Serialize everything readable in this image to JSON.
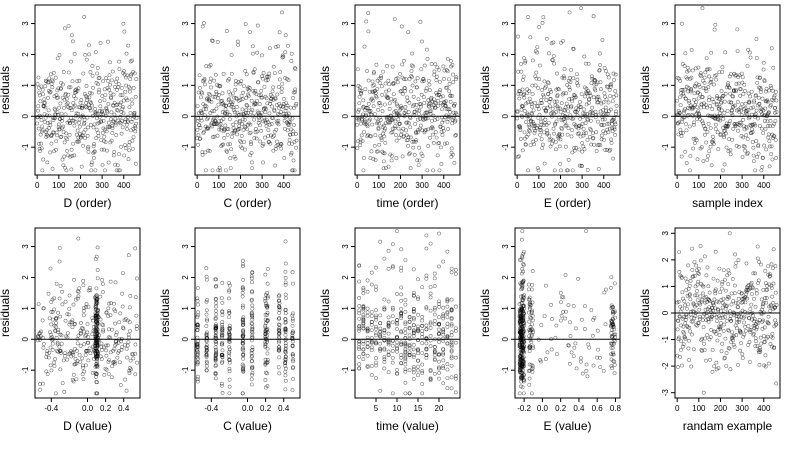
{
  "chart_data": [
    {
      "type": "scatter",
      "xlabel": "D (order)",
      "ylabel": "residuals",
      "xlim": [
        -10,
        475
      ],
      "ylim": [
        -1.9,
        3.6
      ],
      "xticks": [
        0,
        100,
        200,
        300,
        400
      ],
      "yticks": [
        -1,
        0,
        1,
        2,
        3
      ],
      "hline": 0,
      "pattern": "order"
    },
    {
      "type": "scatter",
      "xlabel": "C (order)",
      "ylabel": "residuals",
      "xlim": [
        -10,
        475
      ],
      "ylim": [
        -1.9,
        3.6
      ],
      "xticks": [
        0,
        100,
        200,
        300,
        400
      ],
      "yticks": [
        -1,
        0,
        1,
        2,
        3
      ],
      "hline": 0,
      "pattern": "order"
    },
    {
      "type": "scatter",
      "xlabel": "time (order)",
      "ylabel": "residuals",
      "xlim": [
        -10,
        475
      ],
      "ylim": [
        -1.9,
        3.6
      ],
      "xticks": [
        0,
        100,
        200,
        300,
        400
      ],
      "yticks": [
        -1,
        0,
        1,
        2,
        3
      ],
      "hline": 0,
      "pattern": "order"
    },
    {
      "type": "scatter",
      "xlabel": "E (order)",
      "ylabel": "residuals",
      "xlim": [
        -10,
        475
      ],
      "ylim": [
        -1.9,
        3.6
      ],
      "xticks": [
        0,
        100,
        200,
        300,
        400
      ],
      "yticks": [
        -1,
        0,
        1,
        2,
        3
      ],
      "hline": 0,
      "pattern": "order"
    },
    {
      "type": "scatter",
      "xlabel": "sample index",
      "ylabel": "residuals",
      "xlim": [
        -10,
        475
      ],
      "ylim": [
        -1.9,
        3.6
      ],
      "xticks": [
        0,
        100,
        200,
        300,
        400
      ],
      "yticks": [
        -1,
        0,
        1,
        2,
        3
      ],
      "hline": 0,
      "pattern": "order"
    },
    {
      "type": "scatter",
      "xlabel": "D (value)",
      "ylabel": "residuals",
      "xlim": [
        -0.58,
        0.58
      ],
      "ylim": [
        -1.9,
        3.6
      ],
      "xticks": [
        -0.4,
        0.0,
        0.2,
        0.4
      ],
      "xtick_labels": [
        "-0.4",
        "0.0",
        "0.2",
        "0.4"
      ],
      "yticks": [
        -1,
        0,
        1,
        2,
        3
      ],
      "hline": 0,
      "pattern": "value_d"
    },
    {
      "type": "scatter",
      "xlabel": "C (value)",
      "ylabel": "residuals",
      "xlim": [
        -0.58,
        0.58
      ],
      "ylim": [
        -1.9,
        3.6
      ],
      "xticks": [
        -0.4,
        0.0,
        0.2,
        0.4
      ],
      "xtick_labels": [
        "-0.4",
        "0.0",
        "0.2",
        "0.4"
      ],
      "yticks": [
        -1,
        0,
        1,
        2,
        3
      ],
      "hline": 0,
      "pattern": "value_c"
    },
    {
      "type": "scatter",
      "xlabel": "time (value)",
      "ylabel": "residuals",
      "xlim": [
        0,
        25
      ],
      "ylim": [
        -1.9,
        3.6
      ],
      "xticks": [
        5,
        10,
        15,
        20
      ],
      "yticks": [
        -1,
        0,
        1,
        2,
        3
      ],
      "hline": 0,
      "pattern": "value_time"
    },
    {
      "type": "scatter",
      "xlabel": "E (value)",
      "ylabel": "residuals",
      "xlim": [
        -0.3,
        0.85
      ],
      "ylim": [
        -1.9,
        3.6
      ],
      "xticks": [
        -0.2,
        0.0,
        0.2,
        0.4,
        0.6,
        0.8
      ],
      "xtick_labels": [
        "-0.2",
        "0.0",
        "0.2",
        "0.4",
        "0.6",
        "0.8"
      ],
      "yticks": [
        -1,
        0,
        1,
        2,
        3
      ],
      "hline": 0,
      "pattern": "value_e"
    },
    {
      "type": "scatter",
      "xlabel": "randam example",
      "ylabel": "residuals",
      "xlim": [
        -10,
        475
      ],
      "ylim": [
        -3.2,
        3.2
      ],
      "xticks": [
        0,
        100,
        200,
        300,
        400
      ],
      "yticks": [
        -3,
        -2,
        -1,
        0,
        1,
        2,
        3
      ],
      "hline": 0,
      "pattern": "random"
    }
  ]
}
